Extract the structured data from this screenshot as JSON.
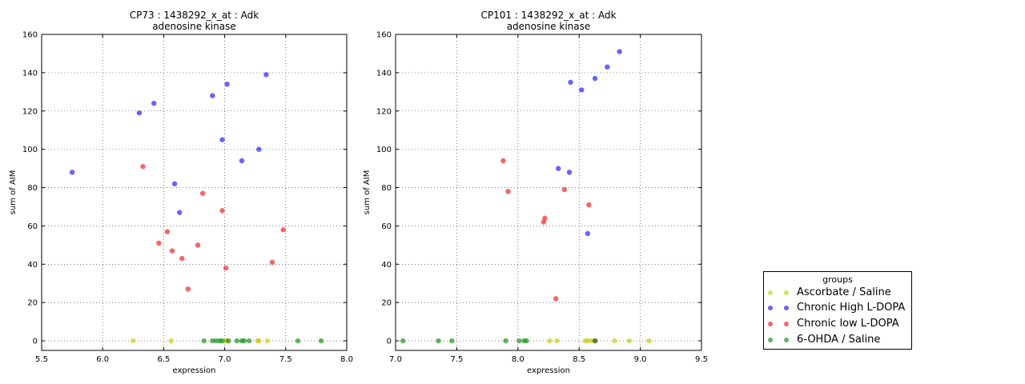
{
  "colors": {
    "Ascorbate / Saline": "#c8c814",
    "Chronic High L-DOPA": "#1414f0",
    "Chronic low L-DOPA": "#f01414",
    "6-OHDA / Saline": "#0f8c0f"
  },
  "legend": {
    "title": "groups",
    "entries": [
      "Ascorbate / Saline",
      "Chronic High L-DOPA",
      "Chronic low L-DOPA",
      "6-OHDA / Saline"
    ]
  },
  "chart_data": [
    {
      "type": "scatter",
      "title": "CP73 : 1438292_x_at : Adk",
      "subtitle": "adenosine kinase",
      "xlabel": "expression",
      "ylabel": "sum of AIM",
      "xlim": [
        5.5,
        8.0
      ],
      "ylim": [
        -5,
        160
      ],
      "xticks": [
        "5.5",
        "6.0",
        "6.5",
        "7.0",
        "7.5",
        "8.0"
      ],
      "yticks": [
        "0",
        "20",
        "40",
        "60",
        "80",
        "100",
        "120",
        "140",
        "160"
      ],
      "grid": true,
      "series": [
        {
          "name": "Ascorbate / Saline",
          "points": [
            [
              6.25,
              0
            ],
            [
              6.56,
              0
            ],
            [
              7.01,
              0
            ],
            [
              7.02,
              0
            ],
            [
              7.27,
              0
            ],
            [
              7.28,
              0
            ],
            [
              7.35,
              0
            ]
          ]
        },
        {
          "name": "Chronic High L-DOPA",
          "points": [
            [
              5.75,
              88
            ],
            [
              6.3,
              119
            ],
            [
              6.42,
              124
            ],
            [
              6.59,
              82
            ],
            [
              6.63,
              67
            ],
            [
              6.9,
              128
            ],
            [
              6.98,
              105
            ],
            [
              7.02,
              134
            ],
            [
              7.14,
              94
            ],
            [
              7.28,
              100
            ],
            [
              7.34,
              139
            ]
          ]
        },
        {
          "name": "Chronic low L-DOPA",
          "points": [
            [
              6.33,
              91
            ],
            [
              6.46,
              51
            ],
            [
              6.53,
              57
            ],
            [
              6.57,
              47
            ],
            [
              6.65,
              43
            ],
            [
              6.7,
              27
            ],
            [
              6.78,
              50
            ],
            [
              6.82,
              77
            ],
            [
              6.98,
              68
            ],
            [
              7.01,
              38
            ],
            [
              7.39,
              41
            ],
            [
              7.48,
              58
            ]
          ]
        },
        {
          "name": "6-OHDA / Saline",
          "points": [
            [
              6.83,
              0
            ],
            [
              6.9,
              0
            ],
            [
              6.93,
              0
            ],
            [
              6.96,
              0
            ],
            [
              6.98,
              0
            ],
            [
              7.03,
              0
            ],
            [
              7.1,
              0
            ],
            [
              7.14,
              0
            ],
            [
              7.16,
              0
            ],
            [
              7.2,
              0
            ],
            [
              7.6,
              0
            ],
            [
              7.79,
              0
            ]
          ]
        }
      ]
    },
    {
      "type": "scatter",
      "title": "CP101 : 1438292_x_at : Adk",
      "subtitle": "adenosine kinase",
      "xlabel": "expression",
      "ylabel": "sum of AIM",
      "xlim": [
        7.0,
        9.5
      ],
      "ylim": [
        -5,
        160
      ],
      "xticks": [
        "7.0",
        "7.5",
        "8.0",
        "8.5",
        "9.0",
        "9.5"
      ],
      "yticks": [
        "0",
        "20",
        "40",
        "60",
        "80",
        "100",
        "120",
        "140",
        "160"
      ],
      "grid": true,
      "series": [
        {
          "name": "Ascorbate / Saline",
          "points": [
            [
              8.26,
              0
            ],
            [
              8.32,
              0
            ],
            [
              8.55,
              0
            ],
            [
              8.57,
              0
            ],
            [
              8.6,
              0
            ],
            [
              8.79,
              0
            ],
            [
              8.91,
              0
            ],
            [
              9.07,
              0
            ]
          ]
        },
        {
          "name": "Chronic High L-DOPA",
          "points": [
            [
              8.33,
              90
            ],
            [
              8.42,
              88
            ],
            [
              8.43,
              135
            ],
            [
              8.52,
              131
            ],
            [
              8.57,
              56
            ],
            [
              8.63,
              137
            ],
            [
              8.73,
              143
            ],
            [
              8.83,
              151
            ]
          ]
        },
        {
          "name": "Chronic low L-DOPA",
          "points": [
            [
              7.88,
              94
            ],
            [
              7.92,
              78
            ],
            [
              8.21,
              62
            ],
            [
              8.22,
              64
            ],
            [
              8.31,
              22
            ],
            [
              8.38,
              79
            ],
            [
              8.58,
              71
            ],
            [
              8.63,
              0
            ]
          ]
        },
        {
          "name": "6-OHDA / Saline",
          "points": [
            [
              7.06,
              0
            ],
            [
              7.35,
              0
            ],
            [
              7.46,
              0
            ],
            [
              7.9,
              0
            ],
            [
              8.01,
              0
            ],
            [
              8.05,
              0
            ],
            [
              8.07,
              0
            ],
            [
              8.63,
              0
            ]
          ]
        }
      ]
    }
  ]
}
